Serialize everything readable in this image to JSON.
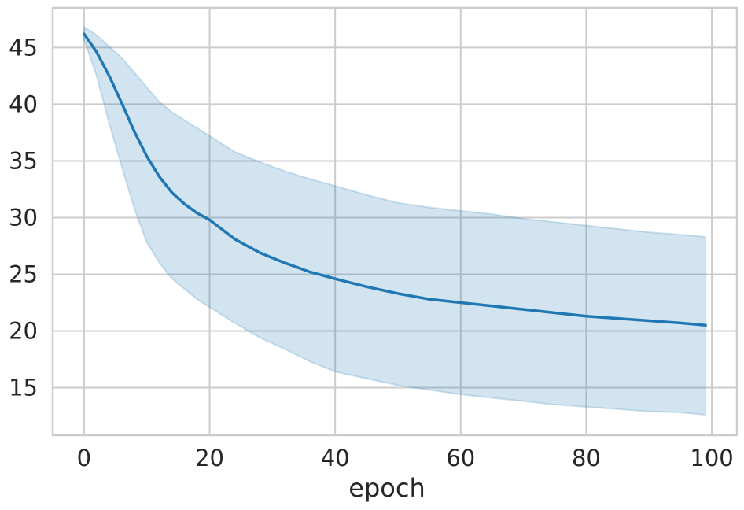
{
  "chart_data": {
    "type": "line",
    "title": "",
    "xlabel": "epoch",
    "ylabel": "",
    "xlim": [
      -5,
      104
    ],
    "ylim": [
      10.8,
      48.5
    ],
    "xticks": [
      0,
      20,
      40,
      60,
      80,
      100
    ],
    "yticks": [
      15,
      20,
      25,
      30,
      35,
      40,
      45
    ],
    "grid": true,
    "legend": "none",
    "colors": {
      "line": "#1f77b4",
      "band": "#1f77b4",
      "grid": "#cccccc",
      "spine": "#cccccc",
      "text": "#262626"
    },
    "series": [
      {
        "x": [
          0,
          2,
          4,
          6,
          8,
          10,
          12,
          14,
          16,
          18,
          20,
          24,
          28,
          32,
          36,
          40,
          45,
          50,
          55,
          60,
          65,
          70,
          75,
          80,
          85,
          90,
          95,
          99
        ],
        "y": [
          46.2,
          44.6,
          42.5,
          40.1,
          37.6,
          35.4,
          33.6,
          32.2,
          31.2,
          30.4,
          29.8,
          28.1,
          26.9,
          26.0,
          25.2,
          24.6,
          23.9,
          23.3,
          22.8,
          22.5,
          22.2,
          21.9,
          21.6,
          21.3,
          21.1,
          20.9,
          20.7,
          20.5
        ],
        "lower": [
          45.7,
          42.5,
          38.3,
          34.5,
          30.8,
          27.8,
          26.0,
          24.6,
          23.7,
          22.8,
          22.1,
          20.7,
          19.4,
          18.4,
          17.3,
          16.4,
          15.8,
          15.2,
          14.8,
          14.4,
          14.1,
          13.8,
          13.5,
          13.3,
          13.1,
          12.9,
          12.8,
          12.6
        ],
        "upper": [
          46.8,
          46.1,
          45.1,
          44.1,
          42.8,
          41.5,
          40.2,
          39.3,
          38.6,
          37.9,
          37.2,
          35.8,
          34.9,
          34.1,
          33.4,
          32.8,
          32.0,
          31.3,
          30.9,
          30.6,
          30.3,
          29.9,
          29.6,
          29.3,
          29.0,
          28.7,
          28.5,
          28.3
        ]
      }
    ]
  }
}
